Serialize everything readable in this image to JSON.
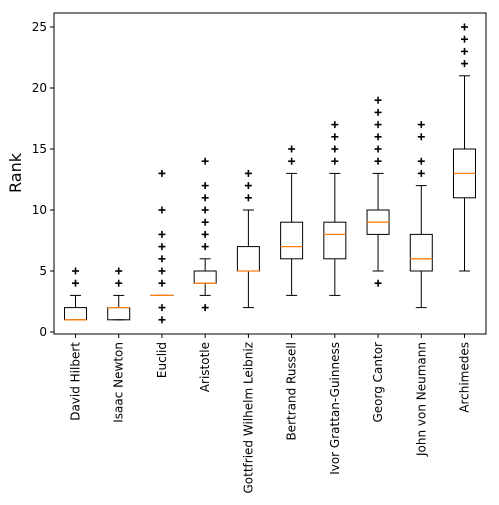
{
  "chart_data": {
    "type": "box",
    "title": "",
    "xlabel": "",
    "ylabel": "Rank",
    "ylim": [
      0,
      26
    ],
    "yticks": [
      0,
      5,
      10,
      15,
      20,
      25
    ],
    "grid": false,
    "colors": {
      "box": "#000000",
      "median": "#ff7f0e",
      "flier": "#000000"
    },
    "categories": [
      "David Hilbert",
      "Isaac Newton",
      "Euclid",
      "Aristotle",
      "Gottfried Wilhelm Leibniz",
      "Bertrand Russell",
      "Ivor Grattan-Guinness",
      "Georg Cantor",
      "John von Neumann",
      "Archimedes"
    ],
    "boxes": [
      {
        "whisker_low": 1,
        "q1": 1,
        "median": 1,
        "q3": 2,
        "whisker_high": 3,
        "fliers": [
          4,
          5
        ]
      },
      {
        "whisker_low": 1,
        "q1": 1,
        "median": 2,
        "q3": 2,
        "whisker_high": 3,
        "fliers": [
          4,
          5
        ]
      },
      {
        "whisker_low": 3,
        "q1": 3,
        "median": 3,
        "q3": 3,
        "whisker_high": 3,
        "fliers": [
          1,
          2,
          4,
          5,
          6,
          7,
          8,
          10,
          13
        ]
      },
      {
        "whisker_low": 3,
        "q1": 4,
        "median": 4,
        "q3": 5,
        "whisker_high": 6,
        "fliers": [
          2,
          7,
          8,
          9,
          10,
          11,
          12,
          14
        ]
      },
      {
        "whisker_low": 2,
        "q1": 5,
        "median": 5,
        "q3": 7,
        "whisker_high": 10,
        "fliers": [
          11,
          12,
          13
        ]
      },
      {
        "whisker_low": 3,
        "q1": 6,
        "median": 7,
        "q3": 9,
        "whisker_high": 13,
        "fliers": [
          14,
          15
        ]
      },
      {
        "whisker_low": 3,
        "q1": 6,
        "median": 8,
        "q3": 9,
        "whisker_high": 13,
        "fliers": [
          14,
          15,
          16,
          17
        ]
      },
      {
        "whisker_low": 5,
        "q1": 8,
        "median": 9,
        "q3": 10,
        "whisker_high": 13,
        "fliers": [
          4,
          14,
          15,
          16,
          17,
          18,
          19
        ]
      },
      {
        "whisker_low": 2,
        "q1": 5,
        "median": 6,
        "q3": 8,
        "whisker_high": 12,
        "fliers": [
          13,
          14,
          16,
          17
        ]
      },
      {
        "whisker_low": 5,
        "q1": 11,
        "median": 13,
        "q3": 15,
        "whisker_high": 21,
        "fliers": [
          22,
          23,
          24,
          25
        ]
      }
    ]
  }
}
